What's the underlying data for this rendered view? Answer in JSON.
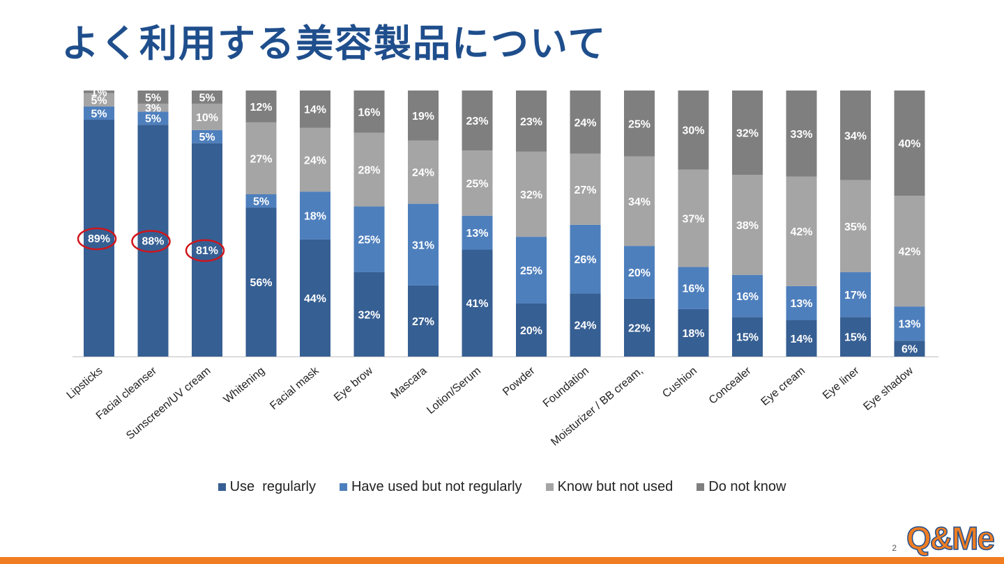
{
  "title": "よく利用する美容製品について",
  "page_number": "2",
  "logo_text": "Q&Me",
  "colors": {
    "use_regularly": "#365f93",
    "have_used": "#4e7fbd",
    "know_not_used": "#a5a5a5",
    "do_not_know": "#7f7f7f",
    "highlight": "#d0151b",
    "title": "#1f4e8c",
    "accent": "#f07d22"
  },
  "legend": [
    {
      "name": "Use  regularly",
      "color": "#365f93"
    },
    {
      "name": "Have used but not regularly",
      "color": "#4e7fbd"
    },
    {
      "name": "Know but not used",
      "color": "#a5a5a5"
    },
    {
      "name": "Do not know",
      "color": "#7f7f7f"
    }
  ],
  "chart_data": {
    "type": "bar",
    "stacked": true,
    "percent": true,
    "title": "",
    "xlabel": "",
    "ylabel": "",
    "ylim": [
      0,
      100
    ],
    "legend_position": "bottom",
    "grid": false,
    "categories": [
      "Lipsticks",
      "Facial cleanser",
      "Sunscreen/UV cream",
      "Whitening",
      "Facial mask",
      "Eye brow",
      "Mascara",
      "Lotion/Serum",
      "Powder",
      "Foundation",
      "Moisturizer / BB cream,",
      "Cushion",
      "Concealer",
      "Eye cream",
      "Eye liner",
      "Eye shadow"
    ],
    "series": [
      {
        "name": "Use  regularly",
        "values": [
          89,
          88,
          81,
          56,
          44,
          32,
          27,
          41,
          20,
          24,
          22,
          18,
          15,
          14,
          15,
          6
        ]
      },
      {
        "name": "Have used but not regularly",
        "values": [
          5,
          5,
          5,
          5,
          18,
          25,
          31,
          13,
          25,
          26,
          20,
          16,
          16,
          13,
          17,
          13
        ]
      },
      {
        "name": "Know but not used",
        "values": [
          5,
          3,
          10,
          27,
          24,
          28,
          24,
          25,
          32,
          27,
          34,
          37,
          38,
          42,
          35,
          42
        ]
      },
      {
        "name": "Do not know",
        "values": [
          1,
          5,
          5,
          12,
          14,
          16,
          19,
          23,
          23,
          24,
          25,
          30,
          32,
          33,
          34,
          40
        ]
      }
    ],
    "highlighted": [
      "Lipsticks",
      "Facial cleanser",
      "Sunscreen/UV cream"
    ]
  }
}
